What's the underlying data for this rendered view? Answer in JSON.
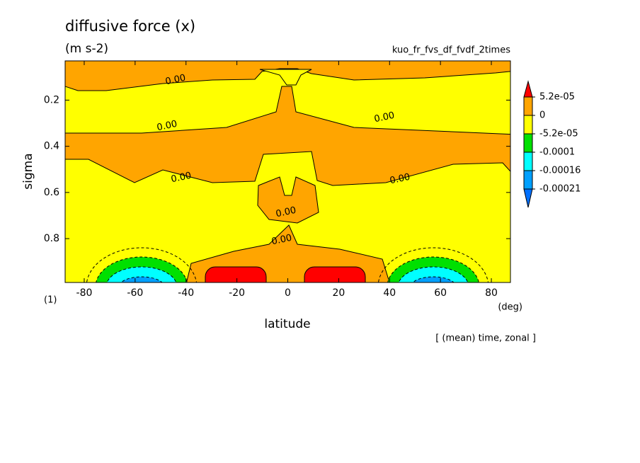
{
  "chart_data": {
    "type": "contour",
    "title": "diffusive force (x)",
    "units": "(m s-2)",
    "subtitle": "kuo_fr_fvs_df_fvdf_2times",
    "xlabel": "latitude",
    "ylabel": "sigma",
    "xunit": "(deg)",
    "yunit": "(1)",
    "annotation": "[ (mean) time, zonal ]",
    "xlim": [
      -87.5,
      87.5
    ],
    "xticks": [
      -80,
      -60,
      -40,
      -20,
      0,
      20,
      40,
      60,
      80
    ],
    "ylim": [
      0.03,
      0.99
    ],
    "yticks": [
      0.2,
      0.4,
      0.6,
      0.8
    ],
    "contour_labels": [
      "0.00",
      "0.00",
      "0.00",
      "0.00",
      "0.00",
      "0.00",
      "0.00"
    ],
    "colorbar": {
      "levels": [
        {
          "value": 5.2e-05,
          "label": "5.2e-05"
        },
        0,
        {
          "value": -5.2e-05,
          "label": "-5.2e-05"
        },
        {
          "value": -0.0001,
          "label": "-0.0001"
        },
        {
          "value": -0.00016,
          "label": "-0.00016"
        },
        {
          "value": -0.00021,
          "label": "-0.00021"
        }
      ],
      "colors": [
        "#ff0000",
        "#ffa500",
        "#ffff00",
        "#00e000",
        "#00ffff",
        "#00a0ff",
        "#0070ff"
      ]
    }
  }
}
